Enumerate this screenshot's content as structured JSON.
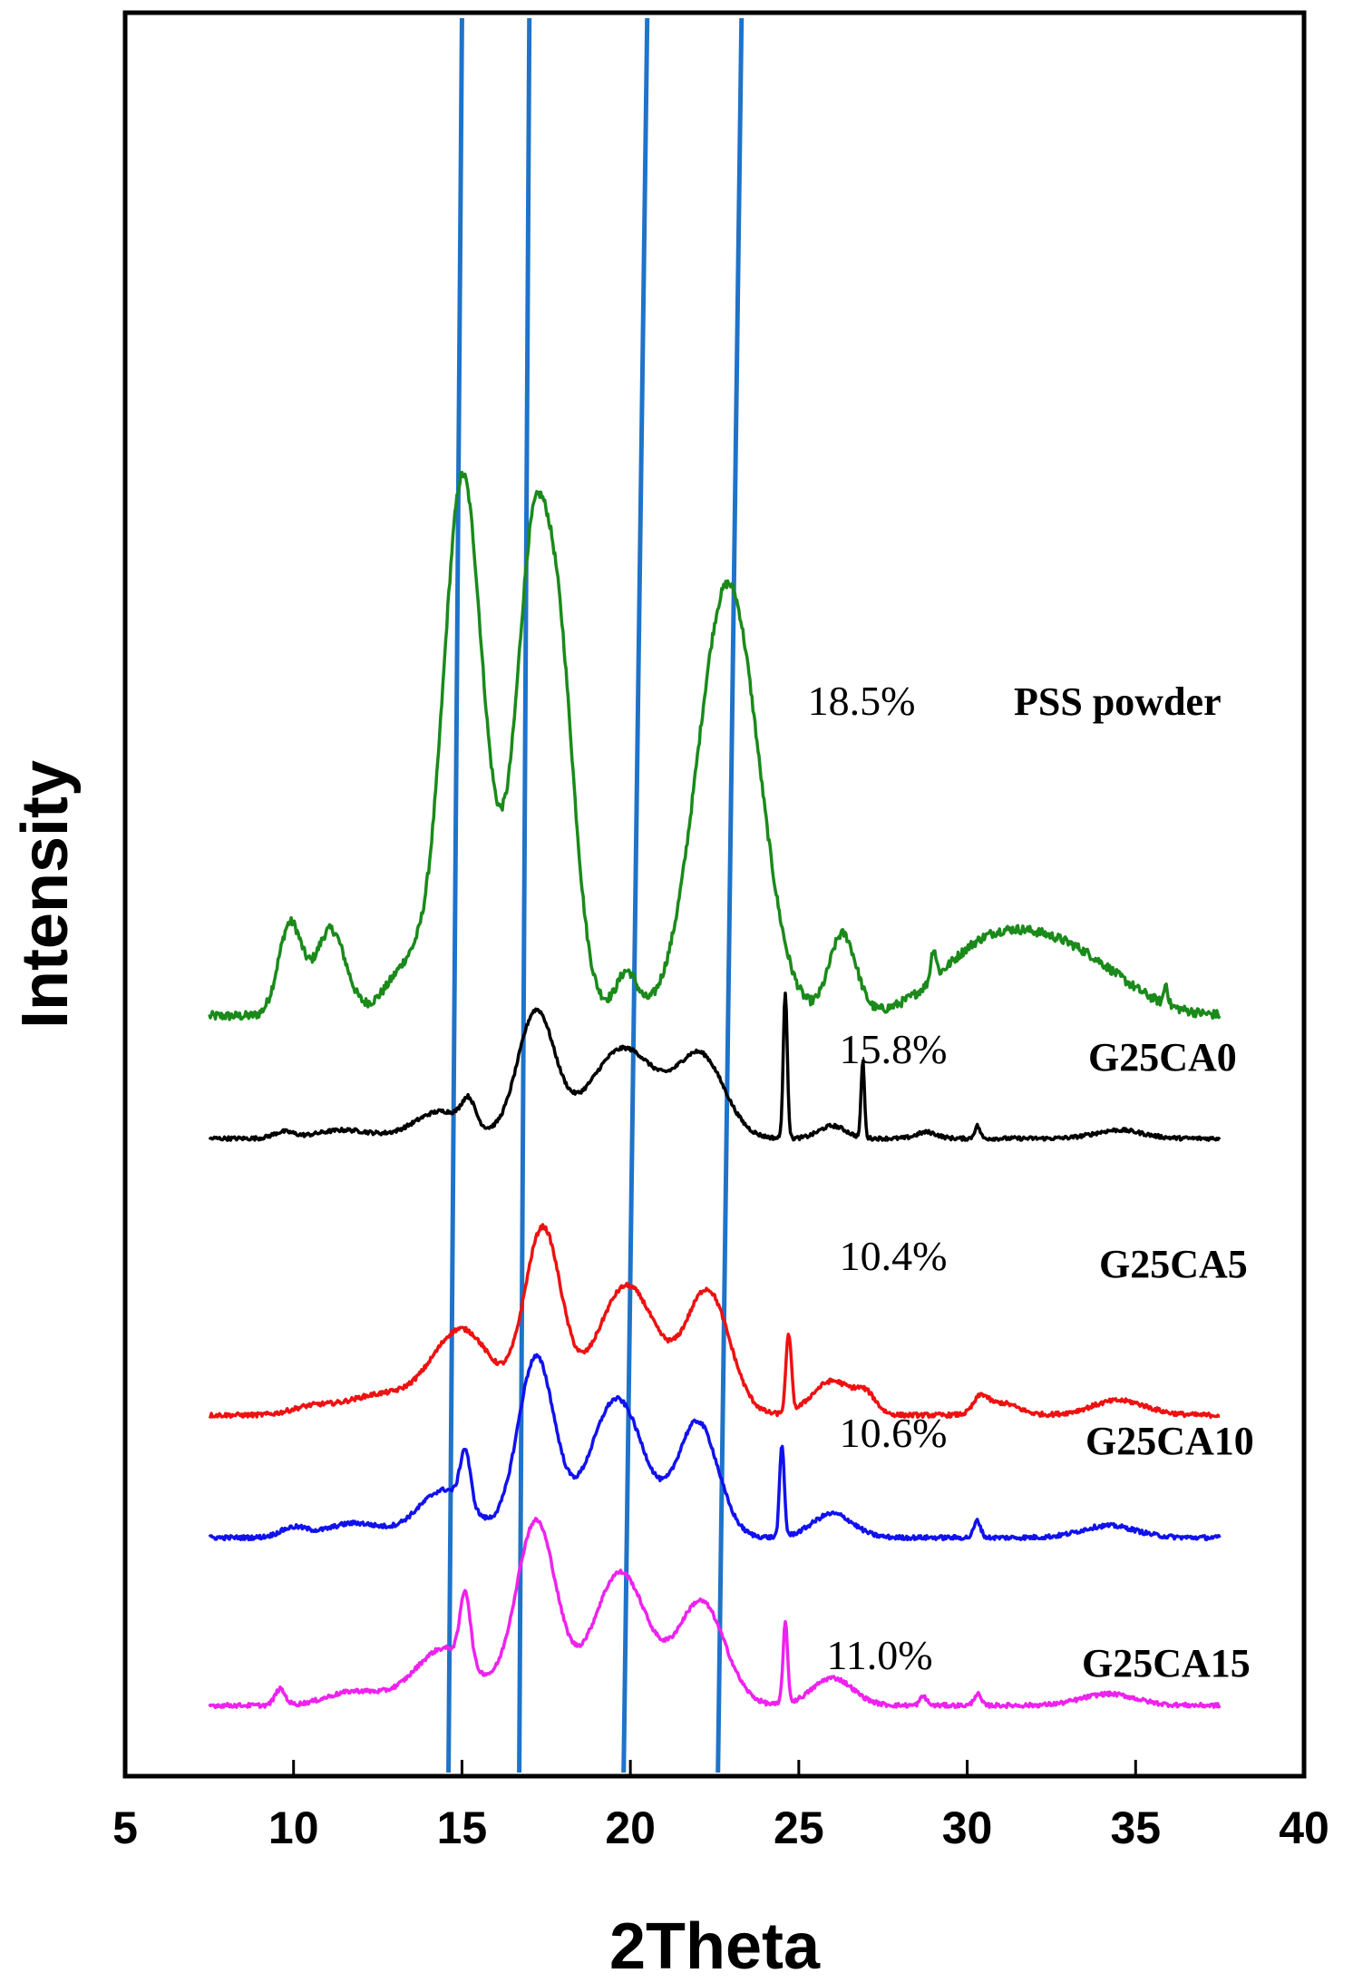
{
  "chart_data": {
    "type": "line",
    "title": "",
    "xlabel": "2Theta",
    "ylabel": "Intensity",
    "xlim": [
      5,
      40
    ],
    "xticks": [
      "5",
      "10",
      "15",
      "20",
      "25",
      "30",
      "35",
      "40"
    ],
    "yticks_shown": false,
    "series": [
      {
        "name": "PSS powder",
        "crystallinity": "18.5%",
        "color": "#1a8a1a",
        "baseline": 0.0,
        "peaks": [
          {
            "x": 9.9,
            "h": 0.18,
            "w": 0.35
          },
          {
            "x": 11.1,
            "h": 0.17,
            "w": 0.45
          },
          {
            "x": 13.5,
            "h": 0.1,
            "w": 0.7
          },
          {
            "x": 15.0,
            "h": 0.95,
            "w": 0.55
          },
          {
            "x": 17.1,
            "h": 0.65,
            "w": 0.45
          },
          {
            "x": 17.9,
            "h": 0.55,
            "w": 0.45
          },
          {
            "x": 16.6,
            "h": 0.25,
            "w": 1.2
          },
          {
            "x": 19.9,
            "h": 0.08,
            "w": 0.3
          },
          {
            "x": 22.9,
            "h": 0.85,
            "w": 0.9
          },
          {
            "x": 26.3,
            "h": 0.16,
            "w": 0.4
          },
          {
            "x": 29.0,
            "h": 0.06,
            "w": 0.08
          },
          {
            "x": 30.5,
            "h": 0.12,
            "w": 1.4
          },
          {
            "x": 33.0,
            "h": 0.12,
            "w": 1.6
          },
          {
            "x": 35.9,
            "h": 0.04,
            "w": 0.06
          }
        ]
      },
      {
        "name": "G25CA0",
        "crystallinity": "15.8%",
        "color": "#000000",
        "baseline": 0.0,
        "peaks": [
          {
            "x": 9.7,
            "h": 0.03,
            "w": 0.3
          },
          {
            "x": 11.5,
            "h": 0.04,
            "w": 0.8
          },
          {
            "x": 14.4,
            "h": 0.13,
            "w": 0.8
          },
          {
            "x": 15.2,
            "h": 0.12,
            "w": 0.2
          },
          {
            "x": 17.2,
            "h": 0.6,
            "w": 0.55
          },
          {
            "x": 19.8,
            "h": 0.43,
            "w": 1.0
          },
          {
            "x": 22.1,
            "h": 0.38,
            "w": 0.7
          },
          {
            "x": 24.6,
            "h": 0.7,
            "w": 0.06
          },
          {
            "x": 26.0,
            "h": 0.06,
            "w": 0.4
          },
          {
            "x": 26.9,
            "h": 0.37,
            "w": 0.05
          },
          {
            "x": 28.8,
            "h": 0.03,
            "w": 0.3
          },
          {
            "x": 30.3,
            "h": 0.06,
            "w": 0.08
          },
          {
            "x": 34.5,
            "h": 0.04,
            "w": 0.7
          }
        ]
      },
      {
        "name": "G25CA5",
        "crystallinity": "10.4%",
        "color": "#ee1111",
        "baseline": 0.0,
        "peaks": [
          {
            "x": 10.5,
            "h": 0.03,
            "w": 0.6
          },
          {
            "x": 12.5,
            "h": 0.08,
            "w": 1.0
          },
          {
            "x": 15.0,
            "h": 0.35,
            "w": 0.9
          },
          {
            "x": 17.4,
            "h": 0.75,
            "w": 0.55
          },
          {
            "x": 19.9,
            "h": 0.53,
            "w": 0.9
          },
          {
            "x": 22.3,
            "h": 0.5,
            "w": 0.65
          },
          {
            "x": 24.7,
            "h": 0.32,
            "w": 0.08
          },
          {
            "x": 26.0,
            "h": 0.14,
            "w": 0.6
          },
          {
            "x": 27.0,
            "h": 0.07,
            "w": 0.3
          },
          {
            "x": 30.4,
            "h": 0.06,
            "w": 0.2
          },
          {
            "x": 31.0,
            "h": 0.05,
            "w": 0.5
          },
          {
            "x": 34.5,
            "h": 0.06,
            "w": 0.8
          }
        ]
      },
      {
        "name": "G25CA10",
        "crystallinity": "10.6%",
        "color": "#1111ee",
        "baseline": 0.0,
        "peaks": [
          {
            "x": 10.0,
            "h": 0.04,
            "w": 0.4
          },
          {
            "x": 11.8,
            "h": 0.06,
            "w": 0.8
          },
          {
            "x": 14.5,
            "h": 0.2,
            "w": 0.8
          },
          {
            "x": 15.1,
            "h": 0.22,
            "w": 0.15
          },
          {
            "x": 17.2,
            "h": 0.75,
            "w": 0.55
          },
          {
            "x": 19.6,
            "h": 0.58,
            "w": 0.8
          },
          {
            "x": 22.0,
            "h": 0.48,
            "w": 0.6
          },
          {
            "x": 24.5,
            "h": 0.38,
            "w": 0.07
          },
          {
            "x": 26.0,
            "h": 0.1,
            "w": 0.6
          },
          {
            "x": 30.3,
            "h": 0.07,
            "w": 0.1
          },
          {
            "x": 34.2,
            "h": 0.05,
            "w": 0.8
          }
        ]
      },
      {
        "name": "G25CA15",
        "crystallinity": "11.0%",
        "color": "#ee22ee",
        "baseline": 0.0,
        "peaks": [
          {
            "x": 9.6,
            "h": 0.07,
            "w": 0.15
          },
          {
            "x": 11.8,
            "h": 0.06,
            "w": 0.8
          },
          {
            "x": 14.5,
            "h": 0.25,
            "w": 0.9
          },
          {
            "x": 15.1,
            "h": 0.3,
            "w": 0.15
          },
          {
            "x": 17.2,
            "h": 0.8,
            "w": 0.6
          },
          {
            "x": 19.7,
            "h": 0.58,
            "w": 0.8
          },
          {
            "x": 22.1,
            "h": 0.45,
            "w": 0.7
          },
          {
            "x": 24.6,
            "h": 0.35,
            "w": 0.07
          },
          {
            "x": 26.0,
            "h": 0.12,
            "w": 0.6
          },
          {
            "x": 28.7,
            "h": 0.04,
            "w": 0.1
          },
          {
            "x": 30.3,
            "h": 0.05,
            "w": 0.1
          },
          {
            "x": 34.2,
            "h": 0.05,
            "w": 0.8
          }
        ]
      }
    ],
    "xrange_data": [
      7.5,
      37.5
    ],
    "reference_lines": [
      {
        "x_top": 15.0,
        "x_bottom": 14.6
      },
      {
        "x_top": 17.0,
        "x_bottom": 16.7
      },
      {
        "x_top": 20.5,
        "x_bottom": 19.8
      },
      {
        "x_top": 23.3,
        "x_bottom": 22.6
      }
    ],
    "reference_line_color": "#1f73c9"
  }
}
